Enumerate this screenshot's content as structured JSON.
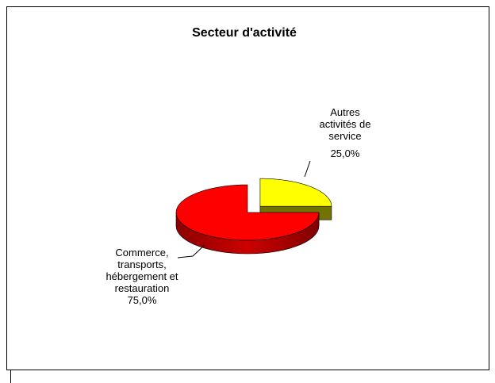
{
  "chart_data": {
    "type": "pie3d",
    "title": "Secteur d'activité",
    "categories": [
      "Autres activités de service",
      "Commerce, transports, hébergement et restauration"
    ],
    "values": [
      25,
      75
    ],
    "value_labels": [
      "25,0%",
      "75,0%"
    ],
    "colors": [
      "#ffff00",
      "#ff0000"
    ]
  }
}
